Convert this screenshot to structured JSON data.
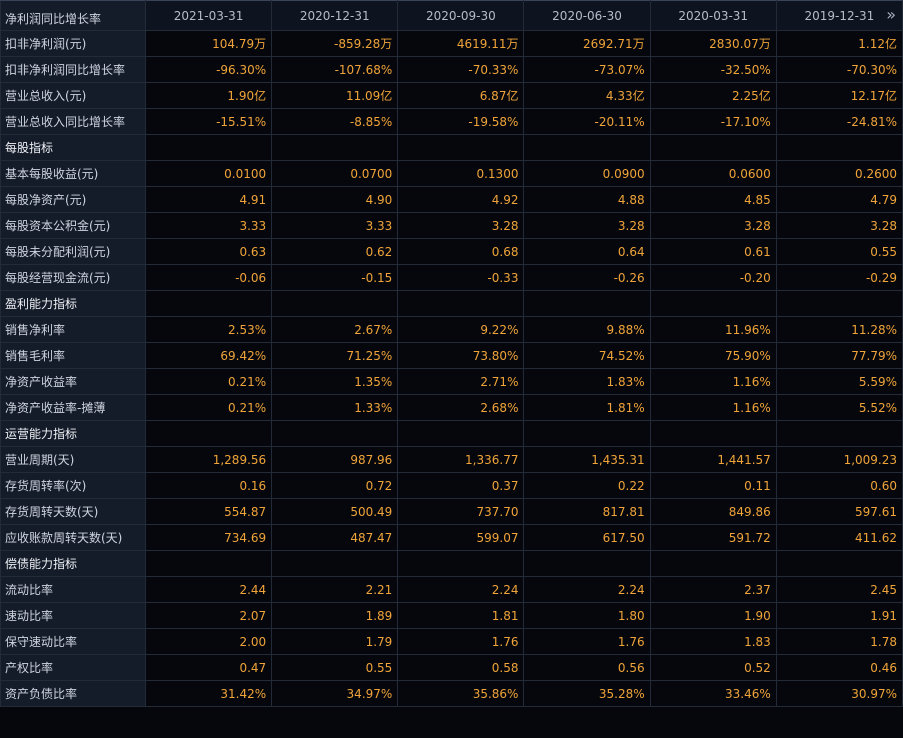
{
  "header": {
    "first_label": "净利润同比增长率",
    "dates": [
      "2021-03-31",
      "2020-12-31",
      "2020-09-30",
      "2020-06-30",
      "2020-03-31",
      "2019-12-31"
    ],
    "more_icon": "»"
  },
  "rows": [
    {
      "label": "扣非净利润(元)",
      "values": [
        "104.79万",
        "-859.28万",
        "4619.11万",
        "2692.71万",
        "2830.07万",
        "1.12亿"
      ]
    },
    {
      "label": "扣非净利润同比增长率",
      "values": [
        "-96.30%",
        "-107.68%",
        "-70.33%",
        "-73.07%",
        "-32.50%",
        "-70.30%"
      ]
    },
    {
      "label": "营业总收入(元)",
      "values": [
        "1.90亿",
        "11.09亿",
        "6.87亿",
        "4.33亿",
        "2.25亿",
        "12.17亿"
      ]
    },
    {
      "label": "营业总收入同比增长率",
      "values": [
        "-15.51%",
        "-8.85%",
        "-19.58%",
        "-20.11%",
        "-17.10%",
        "-24.81%"
      ]
    },
    {
      "label": "每股指标",
      "section": true
    },
    {
      "label": "基本每股收益(元)",
      "values": [
        "0.0100",
        "0.0700",
        "0.1300",
        "0.0900",
        "0.0600",
        "0.2600"
      ]
    },
    {
      "label": "每股净资产(元)",
      "values": [
        "4.91",
        "4.90",
        "4.92",
        "4.88",
        "4.85",
        "4.79"
      ]
    },
    {
      "label": "每股资本公积金(元)",
      "values": [
        "3.33",
        "3.33",
        "3.28",
        "3.28",
        "3.28",
        "3.28"
      ]
    },
    {
      "label": "每股未分配利润(元)",
      "values": [
        "0.63",
        "0.62",
        "0.68",
        "0.64",
        "0.61",
        "0.55"
      ]
    },
    {
      "label": "每股经营现金流(元)",
      "values": [
        "-0.06",
        "-0.15",
        "-0.33",
        "-0.26",
        "-0.20",
        "-0.29"
      ]
    },
    {
      "label": "盈利能力指标",
      "section": true
    },
    {
      "label": "销售净利率",
      "values": [
        "2.53%",
        "2.67%",
        "9.22%",
        "9.88%",
        "11.96%",
        "11.28%"
      ]
    },
    {
      "label": "销售毛利率",
      "values": [
        "69.42%",
        "71.25%",
        "73.80%",
        "74.52%",
        "75.90%",
        "77.79%"
      ]
    },
    {
      "label": "净资产收益率",
      "values": [
        "0.21%",
        "1.35%",
        "2.71%",
        "1.83%",
        "1.16%",
        "5.59%"
      ]
    },
    {
      "label": "净资产收益率-摊薄",
      "values": [
        "0.21%",
        "1.33%",
        "2.68%",
        "1.81%",
        "1.16%",
        "5.52%"
      ]
    },
    {
      "label": "运营能力指标",
      "section": true
    },
    {
      "label": "营业周期(天)",
      "values": [
        "1,289.56",
        "987.96",
        "1,336.77",
        "1,435.31",
        "1,441.57",
        "1,009.23"
      ]
    },
    {
      "label": "存货周转率(次)",
      "values": [
        "0.16",
        "0.72",
        "0.37",
        "0.22",
        "0.11",
        "0.60"
      ]
    },
    {
      "label": "存货周转天数(天)",
      "values": [
        "554.87",
        "500.49",
        "737.70",
        "817.81",
        "849.86",
        "597.61"
      ]
    },
    {
      "label": "应收账款周转天数(天)",
      "values": [
        "734.69",
        "487.47",
        "599.07",
        "617.50",
        "591.72",
        "411.62"
      ]
    },
    {
      "label": "偿债能力指标",
      "section": true
    },
    {
      "label": "流动比率",
      "values": [
        "2.44",
        "2.21",
        "2.24",
        "2.24",
        "2.37",
        "2.45"
      ]
    },
    {
      "label": "速动比率",
      "values": [
        "2.07",
        "1.89",
        "1.81",
        "1.80",
        "1.90",
        "1.91"
      ]
    },
    {
      "label": "保守速动比率",
      "values": [
        "2.00",
        "1.79",
        "1.76",
        "1.76",
        "1.83",
        "1.78"
      ]
    },
    {
      "label": "产权比率",
      "values": [
        "0.47",
        "0.55",
        "0.58",
        "0.56",
        "0.52",
        "0.46"
      ]
    },
    {
      "label": "资产负债比率",
      "values": [
        "31.42%",
        "34.97%",
        "35.86%",
        "35.28%",
        "33.46%",
        "30.97%"
      ]
    }
  ]
}
